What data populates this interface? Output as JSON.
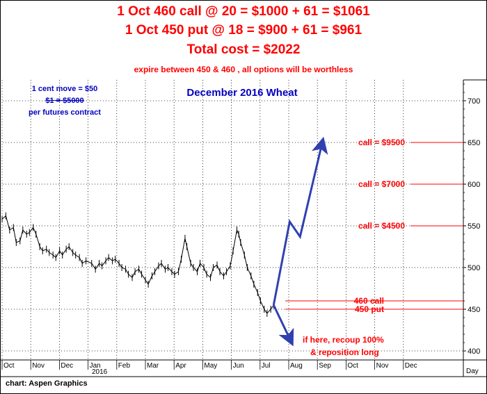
{
  "header": {
    "line1": "1 Oct 460 call @ 20 = $1000 + 61 = $1061",
    "line2": "1 Oct 450 put @ 18 = $900 + 61 = $961",
    "line3": "Total cost = $2022",
    "line4": "expire between 450 & 460 , all options will be worthless"
  },
  "notes": {
    "move1": "1 cent move = $50",
    "move2": "$1 = $5000",
    "move3": "per futures contract"
  },
  "footer": "chart: Aspen Graphics",
  "colors": {
    "price": "#000000",
    "annotation": "#ff0000",
    "arrow": "#3040b0",
    "grid": "#000000"
  },
  "chart_data": {
    "type": "line",
    "title": "December 2016 Wheat",
    "y_range": [
      395,
      725
    ],
    "y_ticks": [
      400,
      450,
      500,
      550,
      600,
      650,
      700
    ],
    "x_months": [
      "Oct",
      "Nov",
      "Dec",
      "Jan",
      "Feb",
      "Mar",
      "Apr",
      "May",
      "Jun",
      "Jul",
      "Aug",
      "Sep",
      "Oct",
      "Nov",
      "Dec"
    ],
    "x_year_label": "2016",
    "x_axis_unit": "Day",
    "price_series": {
      "name": "",
      "points": [
        [
          "2015-10-01",
          558
        ],
        [
          "2015-10-05",
          562
        ],
        [
          "2015-10-09",
          545
        ],
        [
          "2015-10-13",
          548
        ],
        [
          "2015-10-16",
          530
        ],
        [
          "2015-10-20",
          532
        ],
        [
          "2015-10-23",
          545
        ],
        [
          "2015-10-27",
          540
        ],
        [
          "2015-10-30",
          542
        ],
        [
          "2015-11-03",
          548
        ],
        [
          "2015-11-06",
          540
        ],
        [
          "2015-11-10",
          525
        ],
        [
          "2015-11-13",
          520
        ],
        [
          "2015-11-17",
          522
        ],
        [
          "2015-11-20",
          518
        ],
        [
          "2015-11-24",
          515
        ],
        [
          "2015-11-27",
          512
        ],
        [
          "2015-12-01",
          520
        ],
        [
          "2015-12-04",
          515
        ],
        [
          "2015-12-08",
          522
        ],
        [
          "2015-12-11",
          525
        ],
        [
          "2015-12-15",
          518
        ],
        [
          "2015-12-18",
          515
        ],
        [
          "2015-12-22",
          512
        ],
        [
          "2015-12-25",
          505
        ],
        [
          "2015-12-29",
          508
        ],
        [
          "2016-01-04",
          505
        ],
        [
          "2016-01-08",
          498
        ],
        [
          "2016-01-12",
          505
        ],
        [
          "2016-01-15",
          502
        ],
        [
          "2016-01-19",
          508
        ],
        [
          "2016-01-22",
          512
        ],
        [
          "2016-01-26",
          508
        ],
        [
          "2016-01-29",
          510
        ],
        [
          "2016-02-02",
          505
        ],
        [
          "2016-02-05",
          500
        ],
        [
          "2016-02-09",
          498
        ],
        [
          "2016-02-12",
          492
        ],
        [
          "2016-02-16",
          488
        ],
        [
          "2016-02-19",
          495
        ],
        [
          "2016-02-23",
          498
        ],
        [
          "2016-02-26",
          492
        ],
        [
          "2016-03-01",
          485
        ],
        [
          "2016-03-04",
          480
        ],
        [
          "2016-03-08",
          490
        ],
        [
          "2016-03-11",
          495
        ],
        [
          "2016-03-15",
          502
        ],
        [
          "2016-03-18",
          505
        ],
        [
          "2016-03-22",
          498
        ],
        [
          "2016-03-25",
          500
        ],
        [
          "2016-03-29",
          495
        ],
        [
          "2016-04-01",
          492
        ],
        [
          "2016-04-05",
          495
        ],
        [
          "2016-04-08",
          510
        ],
        [
          "2016-04-12",
          535
        ],
        [
          "2016-04-14",
          525
        ],
        [
          "2016-04-18",
          505
        ],
        [
          "2016-04-21",
          500
        ],
        [
          "2016-04-25",
          495
        ],
        [
          "2016-04-28",
          505
        ],
        [
          "2016-05-02",
          500
        ],
        [
          "2016-05-05",
          492
        ],
        [
          "2016-05-09",
          488
        ],
        [
          "2016-05-12",
          500
        ],
        [
          "2016-05-16",
          503
        ],
        [
          "2016-05-19",
          495
        ],
        [
          "2016-05-23",
          490
        ],
        [
          "2016-05-26",
          495
        ],
        [
          "2016-05-30",
          502
        ],
        [
          "2016-06-02",
          520
        ],
        [
          "2016-06-06",
          545
        ],
        [
          "2016-06-08",
          540
        ],
        [
          "2016-06-10",
          530
        ],
        [
          "2016-06-14",
          515
        ],
        [
          "2016-06-17",
          500
        ],
        [
          "2016-06-21",
          490
        ],
        [
          "2016-06-24",
          480
        ],
        [
          "2016-06-28",
          470
        ],
        [
          "2016-07-01",
          460
        ],
        [
          "2016-07-05",
          450
        ],
        [
          "2016-07-08",
          445
        ],
        [
          "2016-07-12",
          450
        ],
        [
          "2016-07-15",
          455
        ]
      ]
    },
    "projection_up": [
      [
        "2016-07-15",
        455
      ],
      [
        "2016-08-01",
        555
      ],
      [
        "2016-08-12",
        537
      ],
      [
        "2016-09-05",
        652
      ]
    ],
    "projection_down": [
      [
        "2016-07-15",
        455
      ],
      [
        "2016-08-03",
        410
      ]
    ],
    "levels": [
      {
        "label": "call = $9500",
        "value": 650
      },
      {
        "label": "call = $7000",
        "value": 600
      },
      {
        "label": "call = $4500",
        "value": 550
      },
      {
        "label": "460 call",
        "value": 460
      },
      {
        "label": "450 put",
        "value": 450
      }
    ],
    "bottom_annotation_1": "if here, recoup 100%",
    "bottom_annotation_2": "& reposition long",
    "grid": true,
    "axis_position": "right"
  }
}
